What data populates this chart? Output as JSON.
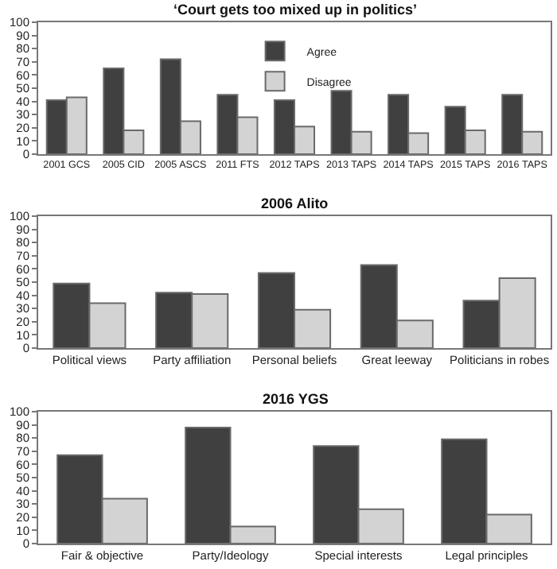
{
  "chart_data": [
    {
      "type": "bar",
      "title": "‘Court gets too mixed up in politics’",
      "categories": [
        "2001 GCS",
        "2005 CID",
        "2005 ASCS",
        "2011 FTS",
        "2012 TAPS",
        "2013 TAPS",
        "2014 TAPS",
        "2015 TAPS",
        "2016 TAPS"
      ],
      "series": [
        {
          "name": "Agree",
          "color": "#404040",
          "values": [
            41,
            65,
            72,
            45,
            41,
            48,
            45,
            36,
            45
          ]
        },
        {
          "name": "Disagree",
          "color": "#d3d3d3",
          "values": [
            43,
            18,
            25,
            28,
            21,
            17,
            16,
            18,
            17
          ]
        }
      ],
      "ylim": [
        0,
        100
      ],
      "yticks": [
        0,
        10,
        20,
        30,
        40,
        50,
        60,
        70,
        80,
        90,
        100
      ],
      "legend": "top"
    },
    {
      "type": "bar",
      "title": "2006 Alito",
      "categories": [
        "Political views",
        "Party affiliation",
        "Personal beliefs",
        "Great leeway",
        "Politicians in robes"
      ],
      "series": [
        {
          "color": "#404040",
          "values": [
            49,
            42,
            57,
            63,
            36
          ]
        },
        {
          "color": "#d3d3d3",
          "values": [
            34,
            41,
            29,
            21,
            53
          ]
        }
      ],
      "ylim": [
        0,
        100
      ],
      "yticks": [
        0,
        10,
        20,
        30,
        40,
        50,
        60,
        70,
        80,
        90,
        100
      ]
    },
    {
      "type": "bar",
      "title": "2016 YGS",
      "categories": [
        "Fair & objective",
        "Party/Ideology",
        "Special interests",
        "Legal principles"
      ],
      "series": [
        {
          "color": "#404040",
          "values": [
            67,
            88,
            74,
            79
          ]
        },
        {
          "color": "#d3d3d3",
          "values": [
            34,
            13,
            26,
            22
          ]
        }
      ],
      "ylim": [
        0,
        100
      ],
      "yticks": [
        0,
        10,
        20,
        30,
        40,
        50,
        60,
        70,
        80,
        90,
        100
      ]
    }
  ]
}
